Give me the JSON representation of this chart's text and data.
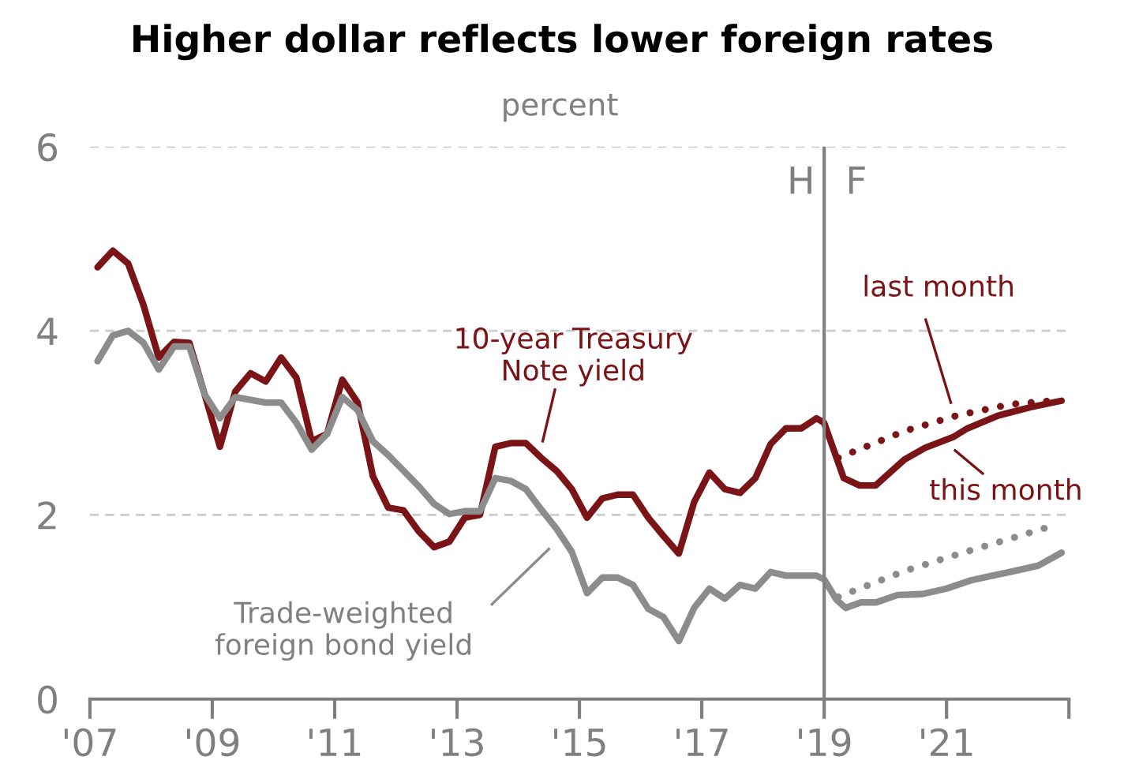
{
  "chart_data": {
    "type": "line",
    "title": "Higher dollar reflects lower foreign rates",
    "subtitle": "percent",
    "xlim": [
      2007,
      2023
    ],
    "xticks": [
      {
        "value": 2007,
        "label": "'07"
      },
      {
        "value": 2009,
        "label": "'09"
      },
      {
        "value": 2011,
        "label": "'11"
      },
      {
        "value": 2013,
        "label": "'13"
      },
      {
        "value": 2015,
        "label": "'15"
      },
      {
        "value": 2017,
        "label": "'17"
      },
      {
        "value": 2019,
        "label": "'19"
      },
      {
        "value": 2021,
        "label": "'21"
      },
      {
        "value": 2023,
        "label": null
      }
    ],
    "ylim": [
      0,
      6
    ],
    "yticks": [
      0,
      2,
      4,
      6
    ],
    "grid": "y",
    "marker": "none",
    "ref_lines": [
      {
        "axis": "x",
        "value": 2019,
        "color": "#808080"
      }
    ],
    "annotations": [
      "H",
      "F",
      {
        "text": "this month",
        "x": 2021.59,
        "y": 2.9
      }
    ],
    "series": [
      {
        "name": "10-year Treasury\nNote yield",
        "color": "#7b1416",
        "line_style": "solid",
        "x": [
          2007.125,
          2007.375,
          2007.625,
          2007.875,
          2008.125,
          2008.375,
          2008.625,
          2008.875,
          2009.125,
          2009.375,
          2009.625,
          2009.875,
          2010.125,
          2010.375,
          2010.625,
          2010.875,
          2011.125,
          2011.375,
          2011.625,
          2011.875,
          2012.125,
          2012.375,
          2012.625,
          2012.875,
          2013.125,
          2013.375,
          2013.625,
          2013.875,
          2014.125,
          2014.375,
          2014.625,
          2014.875,
          2015.125,
          2015.375,
          2015.625,
          2015.875,
          2016.125,
          2016.375,
          2016.625,
          2016.875,
          2017.125,
          2017.375,
          2017.625,
          2017.875,
          2018.125,
          2018.375,
          2018.625,
          2018.875,
          2019.0,
          2019.32,
          2019.58,
          2019.84,
          2020.31,
          2020.65,
          2021.12,
          2021.34,
          2021.85,
          2022.37,
          2022.88
        ],
        "values": [
          4.69,
          4.87,
          4.73,
          4.28,
          3.71,
          3.88,
          3.87,
          3.31,
          2.74,
          3.34,
          3.54,
          3.45,
          3.71,
          3.49,
          2.8,
          2.88,
          3.47,
          3.22,
          2.42,
          2.08,
          2.05,
          1.82,
          1.65,
          1.71,
          1.97,
          2.0,
          2.74,
          2.78,
          2.78,
          2.62,
          2.48,
          2.28,
          1.97,
          2.18,
          2.22,
          2.22,
          1.97,
          1.77,
          1.58,
          2.14,
          2.46,
          2.28,
          2.24,
          2.4,
          2.77,
          2.94,
          2.94,
          3.05,
          3.0,
          2.4,
          2.32,
          2.32,
          2.6,
          2.73,
          2.85,
          2.94,
          3.08,
          3.17,
          3.24
        ]
      },
      {
        "name": "Trade-weighted\nforeign bond yield",
        "color": "#8c8c8c",
        "line_style": "solid",
        "x": [
          2007.125,
          2007.375,
          2007.625,
          2007.875,
          2008.125,
          2008.375,
          2008.625,
          2008.875,
          2009.125,
          2009.375,
          2009.625,
          2009.875,
          2010.125,
          2010.375,
          2010.625,
          2010.875,
          2011.125,
          2011.375,
          2011.625,
          2011.875,
          2012.125,
          2012.375,
          2012.625,
          2012.875,
          2013.125,
          2013.375,
          2013.625,
          2013.875,
          2014.125,
          2014.375,
          2014.625,
          2014.875,
          2015.125,
          2015.375,
          2015.625,
          2015.875,
          2016.125,
          2016.375,
          2016.625,
          2016.875,
          2017.125,
          2017.375,
          2017.625,
          2017.875,
          2018.125,
          2018.375,
          2018.625,
          2018.875,
          2019.0,
          2019.2,
          2019.35,
          2019.6,
          2019.85,
          2020.2,
          2020.6,
          2021.0,
          2021.4,
          2021.75,
          2022.1,
          2022.5,
          2022.88
        ],
        "values": [
          3.67,
          3.95,
          4.0,
          3.87,
          3.58,
          3.83,
          3.83,
          3.31,
          3.05,
          3.28,
          3.25,
          3.22,
          3.22,
          3.0,
          2.71,
          2.88,
          3.28,
          3.14,
          2.8,
          2.65,
          2.48,
          2.31,
          2.12,
          2.01,
          2.04,
          2.04,
          2.4,
          2.37,
          2.28,
          2.06,
          1.85,
          1.6,
          1.15,
          1.32,
          1.32,
          1.24,
          0.98,
          0.89,
          0.63,
          0.99,
          1.2,
          1.09,
          1.24,
          1.2,
          1.38,
          1.34,
          1.34,
          1.34,
          1.3,
          1.08,
          0.99,
          1.05,
          1.05,
          1.13,
          1.14,
          1.2,
          1.29,
          1.34,
          1.39,
          1.45,
          1.59
        ]
      },
      {
        "name": "last month",
        "color": "#7b1416",
        "line_style": "dotted",
        "x": [
          2019.23,
          2020.31,
          2021.17,
          2022.03,
          2022.88
        ],
        "values": [
          2.62,
          2.91,
          3.08,
          3.2,
          3.25
        ]
      },
      {
        "color": "#8c8c8c",
        "line_style": "dotted",
        "x": [
          2019.23,
          2020.31,
          2021.17,
          2022.03,
          2022.72
        ],
        "values": [
          1.11,
          1.39,
          1.57,
          1.74,
          1.88
        ]
      }
    ]
  }
}
